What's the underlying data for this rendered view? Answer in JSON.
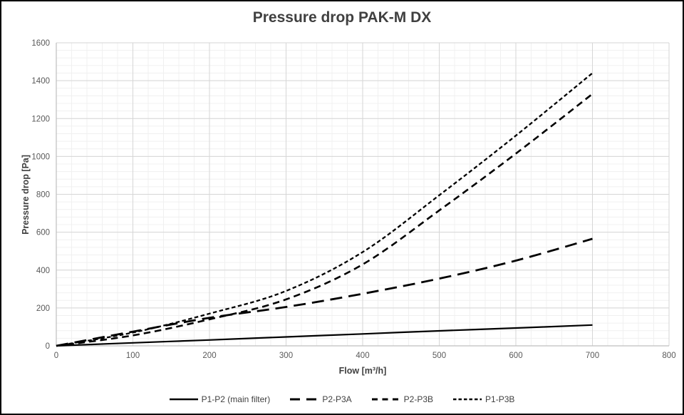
{
  "window": {
    "background": "#ffffff",
    "border_color": "#000000"
  },
  "chart_data": {
    "type": "line",
    "title": "Pressure drop PAK-M DX",
    "xlabel": "Flow [m³/h]",
    "ylabel": "Pressure drop [Pa]",
    "xlim": [
      0,
      800
    ],
    "ylim": [
      0,
      1600
    ],
    "xticks": [
      0,
      100,
      200,
      300,
      400,
      500,
      600,
      700,
      800
    ],
    "yticks": [
      0,
      200,
      400,
      600,
      800,
      1000,
      1200,
      1400,
      1600
    ],
    "minor_x_step": 20,
    "minor_y_step": 40,
    "grid": "major+minor",
    "legend_position": "bottom",
    "x": [
      0,
      100,
      200,
      300,
      400,
      500,
      600,
      700
    ],
    "series": [
      {
        "name": "P1-P2 (main filter)",
        "dash": "solid",
        "values": [
          0,
          16,
          31,
          47,
          63,
          79,
          94,
          110
        ]
      },
      {
        "name": "P2-P3A",
        "dash": "long-dash",
        "values": [
          0,
          75,
          148,
          205,
          275,
          355,
          450,
          565
        ]
      },
      {
        "name": "P2-P3B",
        "dash": "medium-dash",
        "values": [
          0,
          55,
          140,
          245,
          430,
          715,
          1015,
          1330
        ]
      },
      {
        "name": "P1-P3B",
        "dash": "short-dash",
        "values": [
          0,
          70,
          170,
          290,
          495,
          795,
          1110,
          1440
        ]
      }
    ],
    "colors": {
      "line": "#000000",
      "major_grid": "#d6d6d6",
      "minor_grid": "#f0f0f0",
      "axis": "#bfbfbf",
      "tick_label": "#595959",
      "title": "#404040"
    }
  }
}
